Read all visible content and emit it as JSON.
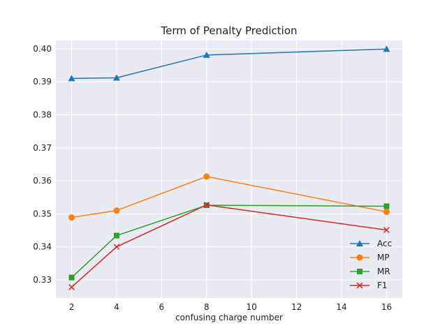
{
  "chart_data": {
    "type": "line",
    "title": "Term of Penalty Prediction",
    "xlabel": "confusing charge number",
    "ylabel": "",
    "x": [
      2,
      4,
      8,
      16
    ],
    "xlim": [
      1.3,
      16.7
    ],
    "ylim": [
      0.3245,
      0.4025
    ],
    "xticks": [
      2,
      4,
      6,
      8,
      10,
      12,
      14,
      16
    ],
    "yticks": [
      0.33,
      0.34,
      0.35,
      0.36,
      0.37,
      0.38,
      0.39,
      0.4
    ],
    "ytick_labels": [
      "0.33",
      "0.34",
      "0.35",
      "0.36",
      "0.37",
      "0.38",
      "0.39",
      "0.40"
    ],
    "grid": true,
    "legend_position": "lower-right",
    "series": [
      {
        "name": "Acc",
        "values": [
          0.391,
          0.3912,
          0.3981,
          0.3999
        ],
        "color": "#1f77b4",
        "marker": "triangle"
      },
      {
        "name": "MP",
        "values": [
          0.3489,
          0.351,
          0.3613,
          0.3506
        ],
        "color": "#ff7f0e",
        "marker": "circle"
      },
      {
        "name": "MR",
        "values": [
          0.3307,
          0.3434,
          0.3526,
          0.3523
        ],
        "color": "#2ca02c",
        "marker": "square"
      },
      {
        "name": "F1",
        "values": [
          0.3278,
          0.34,
          0.3527,
          0.3451
        ],
        "color": "#d62728",
        "marker": "x"
      }
    ]
  }
}
